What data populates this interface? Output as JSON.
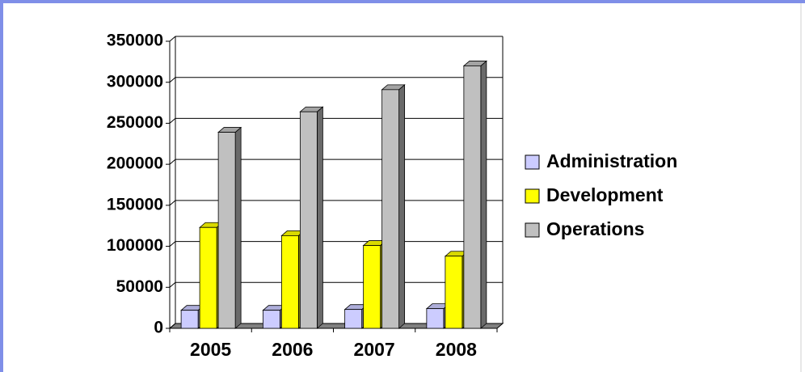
{
  "chart_data": {
    "type": "bar3d",
    "categories": [
      "2005",
      "2006",
      "2007",
      "2008"
    ],
    "series": [
      {
        "name": "Administration",
        "color": "#ccccff",
        "values": [
          22000,
          22000,
          23000,
          24000
        ]
      },
      {
        "name": "Development",
        "color": "#ffff00",
        "values": [
          123000,
          113000,
          101000,
          88000
        ]
      },
      {
        "name": "Operations",
        "color": "#c0c0c0",
        "values": [
          239000,
          264000,
          291000,
          320000
        ]
      }
    ],
    "ylim": [
      0,
      350000
    ],
    "yticks": [
      0,
      50000,
      100000,
      150000,
      200000,
      250000,
      300000,
      350000
    ],
    "grid": true,
    "legend": "right"
  }
}
